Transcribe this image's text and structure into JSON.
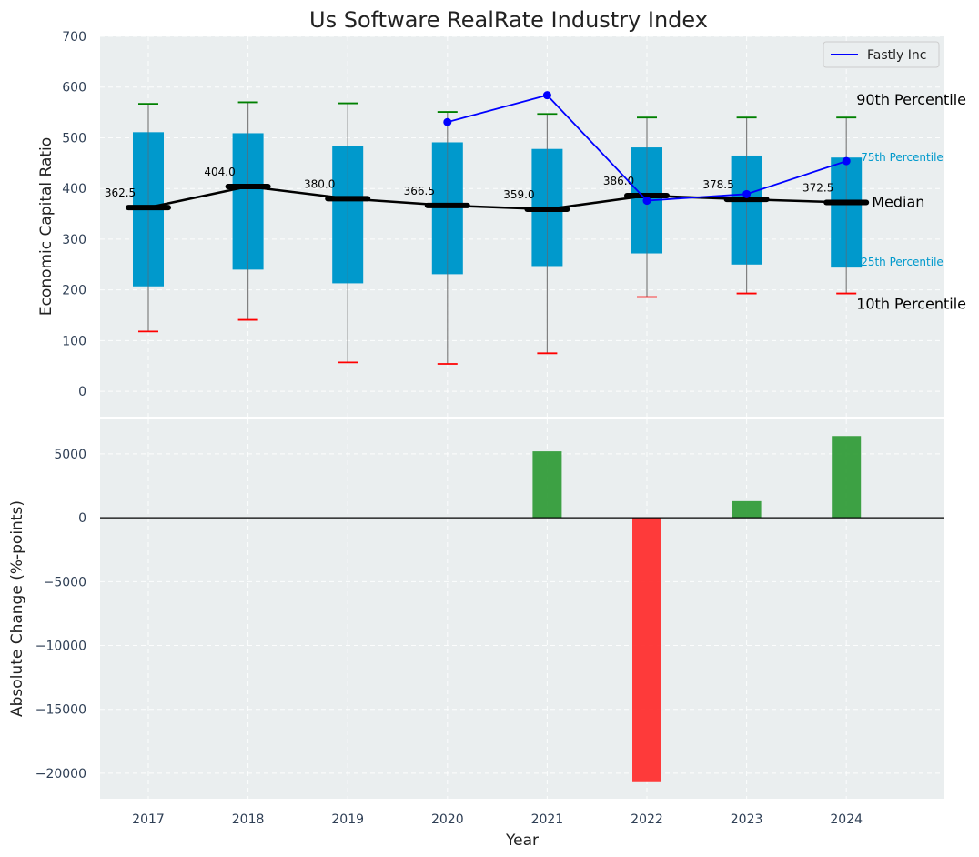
{
  "chart_data": [
    {
      "type": "box",
      "title": "Us Software RealRate Industry Index",
      "xlabel": "",
      "ylabel": "Economic Capital Ratio",
      "ylim": [
        -50,
        700
      ],
      "yticks": [
        0,
        100,
        200,
        300,
        400,
        500,
        600,
        700
      ],
      "categories": [
        "2017",
        "2018",
        "2019",
        "2020",
        "2021",
        "2022",
        "2023",
        "2024"
      ],
      "p10": [
        118,
        141,
        57,
        54,
        75,
        186,
        193,
        193
      ],
      "p25": [
        207,
        240,
        213,
        231,
        247,
        272,
        250,
        244
      ],
      "median": [
        362.5,
        404.0,
        380.0,
        366.5,
        359.0,
        386.0,
        378.5,
        372.5
      ],
      "median_labels": [
        "362.5",
        "404.0",
        "380.0",
        "366.5",
        "359.0",
        "386.0",
        "378.5",
        "372.5"
      ],
      "p75": [
        511,
        509,
        483,
        491,
        478,
        481,
        465,
        461
      ],
      "p90": [
        567,
        570,
        568,
        551,
        547,
        540,
        540,
        540
      ],
      "series": [
        {
          "name": "Fastly Inc",
          "x": [
            "2020",
            "2021",
            "2022",
            "2023",
            "2024"
          ],
          "values": [
            531,
            584,
            376,
            389,
            454
          ]
        }
      ],
      "legend": [
        "Fastly Inc"
      ],
      "legend_position": "top-right",
      "annotations": {
        "p90": "90th Percentile",
        "p75": "75th Percentile",
        "median": "Median",
        "p25": "25th Percentile",
        "p10": "10th Percentile"
      },
      "colors": {
        "box": "#0099cc",
        "median": "#000000",
        "p90_cap": "#008000",
        "p10_cap": "#ff0000",
        "series": "#0000ff",
        "whisker": "#808080",
        "background": "#eaeeef"
      }
    },
    {
      "type": "bar",
      "title": "",
      "xlabel": "Year",
      "ylabel": "Absolute Change (%-points)",
      "ylim": [
        -22000,
        7700
      ],
      "yticks": [
        -20000,
        -15000,
        -10000,
        -5000,
        0,
        5000
      ],
      "categories": [
        "2017",
        "2018",
        "2019",
        "2020",
        "2021",
        "2022",
        "2023",
        "2024"
      ],
      "values": [
        0,
        0,
        0,
        0,
        5200,
        -20700,
        1300,
        6400
      ],
      "colors": {
        "positive": "#2e9a35",
        "negative": "#ff2a2a",
        "zero_line": "#000000"
      }
    }
  ]
}
